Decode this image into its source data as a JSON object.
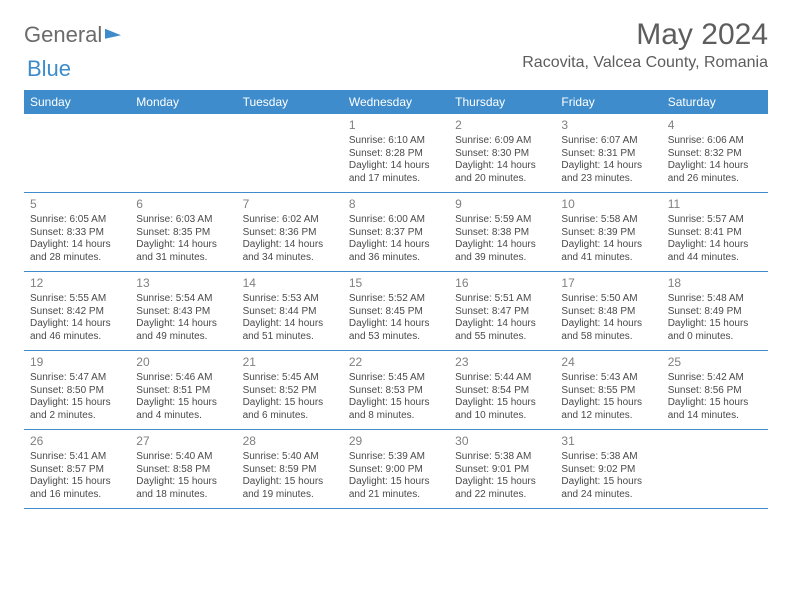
{
  "brand": {
    "word1": "General",
    "word2": "Blue"
  },
  "title": "May 2024",
  "location": "Racovita, Valcea County, Romania",
  "colors": {
    "header_bg": "#3e8ccb",
    "header_text": "#ffffff",
    "rule": "#3e8ccb",
    "text": "#4a4a4a",
    "title_text": "#5d5d5d"
  },
  "dayNames": [
    "Sunday",
    "Monday",
    "Tuesday",
    "Wednesday",
    "Thursday",
    "Friday",
    "Saturday"
  ],
  "weeks": [
    [
      null,
      null,
      null,
      {
        "n": "1",
        "sunrise": "6:10 AM",
        "sunset": "8:28 PM",
        "daylight": "14 hours and 17 minutes."
      },
      {
        "n": "2",
        "sunrise": "6:09 AM",
        "sunset": "8:30 PM",
        "daylight": "14 hours and 20 minutes."
      },
      {
        "n": "3",
        "sunrise": "6:07 AM",
        "sunset": "8:31 PM",
        "daylight": "14 hours and 23 minutes."
      },
      {
        "n": "4",
        "sunrise": "6:06 AM",
        "sunset": "8:32 PM",
        "daylight": "14 hours and 26 minutes."
      }
    ],
    [
      {
        "n": "5",
        "sunrise": "6:05 AM",
        "sunset": "8:33 PM",
        "daylight": "14 hours and 28 minutes."
      },
      {
        "n": "6",
        "sunrise": "6:03 AM",
        "sunset": "8:35 PM",
        "daylight": "14 hours and 31 minutes."
      },
      {
        "n": "7",
        "sunrise": "6:02 AM",
        "sunset": "8:36 PM",
        "daylight": "14 hours and 34 minutes."
      },
      {
        "n": "8",
        "sunrise": "6:00 AM",
        "sunset": "8:37 PM",
        "daylight": "14 hours and 36 minutes."
      },
      {
        "n": "9",
        "sunrise": "5:59 AM",
        "sunset": "8:38 PM",
        "daylight": "14 hours and 39 minutes."
      },
      {
        "n": "10",
        "sunrise": "5:58 AM",
        "sunset": "8:39 PM",
        "daylight": "14 hours and 41 minutes."
      },
      {
        "n": "11",
        "sunrise": "5:57 AM",
        "sunset": "8:41 PM",
        "daylight": "14 hours and 44 minutes."
      }
    ],
    [
      {
        "n": "12",
        "sunrise": "5:55 AM",
        "sunset": "8:42 PM",
        "daylight": "14 hours and 46 minutes."
      },
      {
        "n": "13",
        "sunrise": "5:54 AM",
        "sunset": "8:43 PM",
        "daylight": "14 hours and 49 minutes."
      },
      {
        "n": "14",
        "sunrise": "5:53 AM",
        "sunset": "8:44 PM",
        "daylight": "14 hours and 51 minutes."
      },
      {
        "n": "15",
        "sunrise": "5:52 AM",
        "sunset": "8:45 PM",
        "daylight": "14 hours and 53 minutes."
      },
      {
        "n": "16",
        "sunrise": "5:51 AM",
        "sunset": "8:47 PM",
        "daylight": "14 hours and 55 minutes."
      },
      {
        "n": "17",
        "sunrise": "5:50 AM",
        "sunset": "8:48 PM",
        "daylight": "14 hours and 58 minutes."
      },
      {
        "n": "18",
        "sunrise": "5:48 AM",
        "sunset": "8:49 PM",
        "daylight": "15 hours and 0 minutes."
      }
    ],
    [
      {
        "n": "19",
        "sunrise": "5:47 AM",
        "sunset": "8:50 PM",
        "daylight": "15 hours and 2 minutes."
      },
      {
        "n": "20",
        "sunrise": "5:46 AM",
        "sunset": "8:51 PM",
        "daylight": "15 hours and 4 minutes."
      },
      {
        "n": "21",
        "sunrise": "5:45 AM",
        "sunset": "8:52 PM",
        "daylight": "15 hours and 6 minutes."
      },
      {
        "n": "22",
        "sunrise": "5:45 AM",
        "sunset": "8:53 PM",
        "daylight": "15 hours and 8 minutes."
      },
      {
        "n": "23",
        "sunrise": "5:44 AM",
        "sunset": "8:54 PM",
        "daylight": "15 hours and 10 minutes."
      },
      {
        "n": "24",
        "sunrise": "5:43 AM",
        "sunset": "8:55 PM",
        "daylight": "15 hours and 12 minutes."
      },
      {
        "n": "25",
        "sunrise": "5:42 AM",
        "sunset": "8:56 PM",
        "daylight": "15 hours and 14 minutes."
      }
    ],
    [
      {
        "n": "26",
        "sunrise": "5:41 AM",
        "sunset": "8:57 PM",
        "daylight": "15 hours and 16 minutes."
      },
      {
        "n": "27",
        "sunrise": "5:40 AM",
        "sunset": "8:58 PM",
        "daylight": "15 hours and 18 minutes."
      },
      {
        "n": "28",
        "sunrise": "5:40 AM",
        "sunset": "8:59 PM",
        "daylight": "15 hours and 19 minutes."
      },
      {
        "n": "29",
        "sunrise": "5:39 AM",
        "sunset": "9:00 PM",
        "daylight": "15 hours and 21 minutes."
      },
      {
        "n": "30",
        "sunrise": "5:38 AM",
        "sunset": "9:01 PM",
        "daylight": "15 hours and 22 minutes."
      },
      {
        "n": "31",
        "sunrise": "5:38 AM",
        "sunset": "9:02 PM",
        "daylight": "15 hours and 24 minutes."
      },
      null
    ]
  ],
  "labels": {
    "sunrise": "Sunrise:",
    "sunset": "Sunset:",
    "daylight": "Daylight:"
  }
}
